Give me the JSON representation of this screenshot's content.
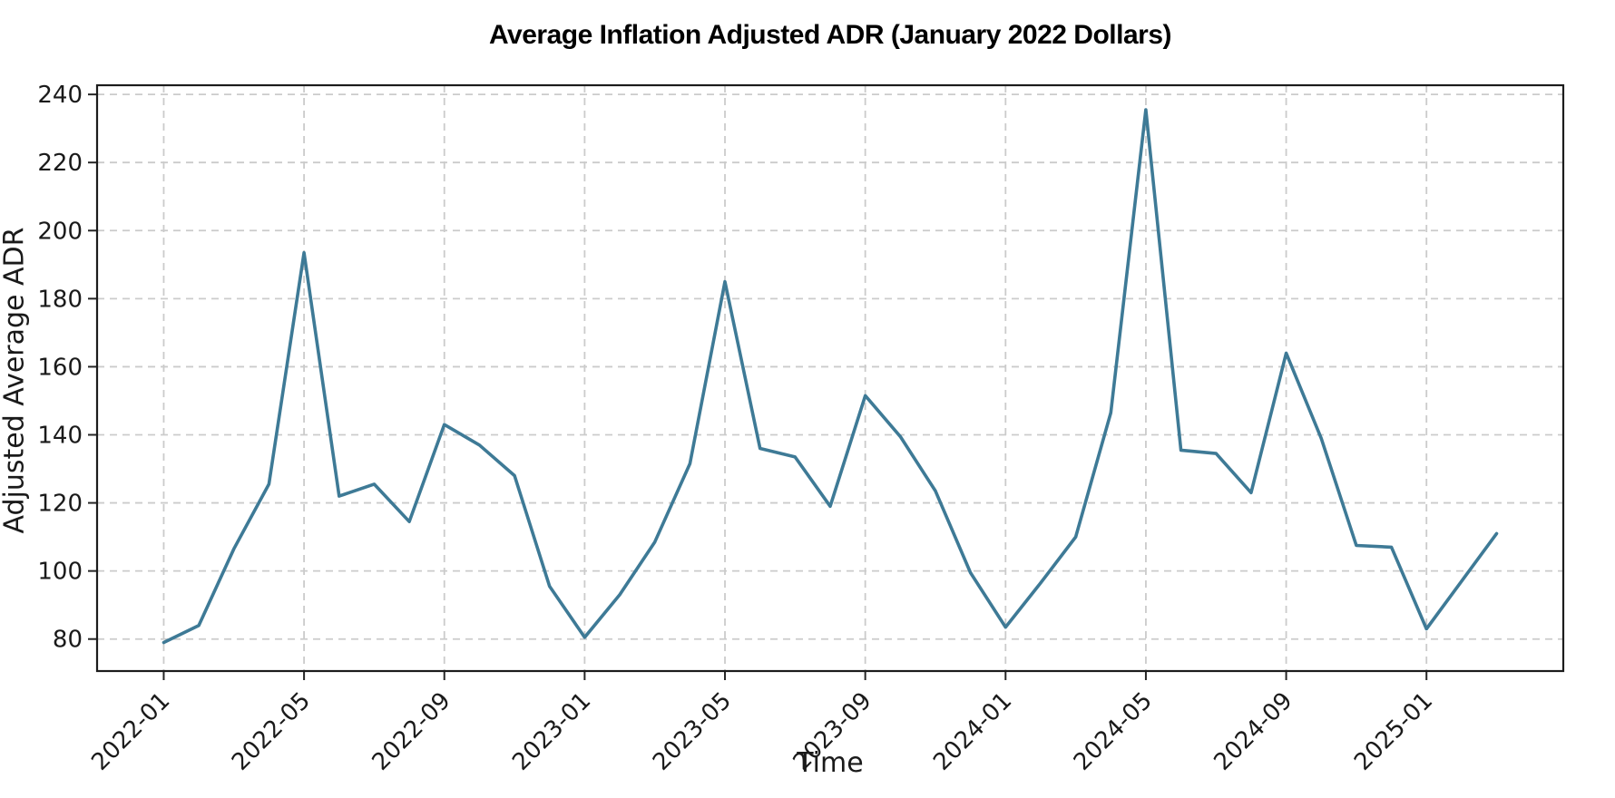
{
  "chart_data": {
    "type": "line",
    "title": "Average Inflation Adjusted ADR (January 2022 Dollars)",
    "xlabel": "Time",
    "ylabel": "Adjusted Average ADR",
    "x": [
      "2022-01",
      "2022-02",
      "2022-03",
      "2022-04",
      "2022-05",
      "2022-06",
      "2022-07",
      "2022-08",
      "2022-09",
      "2022-10",
      "2022-11",
      "2022-12",
      "2023-01",
      "2023-02",
      "2023-03",
      "2023-04",
      "2023-05",
      "2023-06",
      "2023-07",
      "2023-08",
      "2023-09",
      "2023-10",
      "2023-11",
      "2023-12",
      "2024-01",
      "2024-02",
      "2024-03",
      "2024-04",
      "2024-05",
      "2024-06",
      "2024-07",
      "2024-08",
      "2024-09",
      "2024-10",
      "2024-11",
      "2024-12",
      "2025-01",
      "2025-02",
      "2025-03"
    ],
    "values": [
      79,
      84,
      106.5,
      125.5,
      193.5,
      122,
      125.5,
      114.5,
      143,
      137,
      128,
      95.5,
      80.5,
      93,
      108.5,
      131.5,
      185,
      136,
      133.5,
      119,
      151.5,
      139.5,
      123.5,
      99.5,
      83.5,
      96.5,
      110,
      146.5,
      235.5,
      135.5,
      134.5,
      123,
      164,
      139,
      107.5,
      107,
      83,
      97,
      111
    ],
    "xtick_labels": [
      "2022-01",
      "2022-05",
      "2022-09",
      "2023-01",
      "2023-05",
      "2023-09",
      "2024-01",
      "2024-05",
      "2024-09",
      "2025-01"
    ],
    "yticks": [
      80,
      100,
      120,
      140,
      160,
      180,
      200,
      220,
      240
    ],
    "ylim": [
      70.6,
      242.7
    ],
    "x_margin_months": 1.9,
    "grid": true,
    "legend": "none",
    "line_color": "#3E7A96",
    "grid_color": "#cbcbcb",
    "spine_color": "#1c1c1c",
    "tick_color": "#262626",
    "text_color": "#1a1a1a",
    "background": "#ffffff"
  }
}
